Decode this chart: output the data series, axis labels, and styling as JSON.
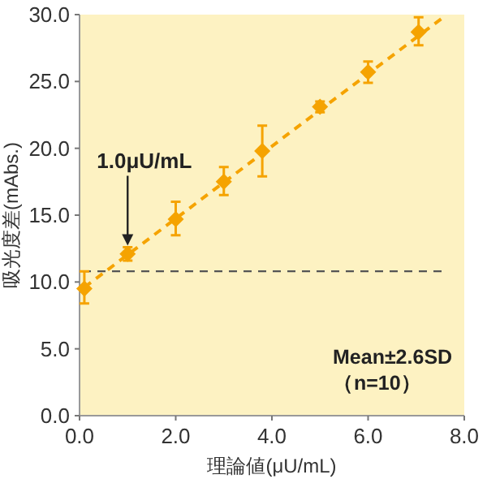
{
  "chart_data": {
    "type": "scatter",
    "xlabel": "理論値(μU/mL)",
    "ylabel": "吸光度差(mAbs.)",
    "xlim": [
      0,
      8
    ],
    "ylim": [
      0,
      30
    ],
    "xticks": [
      {
        "value": 0,
        "label": "0.0"
      },
      {
        "value": 2,
        "label": "2.0"
      },
      {
        "value": 4,
        "label": "4.0"
      },
      {
        "value": 6,
        "label": "6.0"
      },
      {
        "value": 8,
        "label": "8.0"
      }
    ],
    "yticks": [
      {
        "value": 0,
        "label": "0.0"
      },
      {
        "value": 5,
        "label": "5.0"
      },
      {
        "value": 10,
        "label": "10.0"
      },
      {
        "value": 15,
        "label": "15.0"
      },
      {
        "value": 20,
        "label": "20.0"
      },
      {
        "value": 25,
        "label": "25.0"
      },
      {
        "value": 30,
        "label": "30.0"
      }
    ],
    "series": [
      {
        "type": "scatter",
        "color": "#f5a300",
        "marker": "diamond",
        "x": [
          0.1,
          1,
          2,
          3,
          3.8,
          5,
          6,
          7.05
        ],
        "values": [
          9.5,
          12.1,
          14.7,
          17.5,
          19.8,
          23.1,
          25.7,
          28.7
        ],
        "errors": [
          [
            8.4,
            10.8
          ],
          [
            11.6,
            12.6
          ],
          [
            13.5,
            16.0
          ],
          [
            16.5,
            18.6
          ],
          [
            17.9,
            21.7
          ],
          [
            22.7,
            23.5
          ],
          [
            24.9,
            26.5
          ],
          [
            27.7,
            29.8
          ]
        ]
      },
      {
        "type": "line",
        "color": "#f5a300",
        "line_style": "dashed",
        "x": [
          0.1,
          7.6
        ],
        "values": [
          9.6,
          29.9
        ]
      }
    ],
    "ref_lines": [
      {
        "axis": "y",
        "value": 10.8,
        "color": "#555555",
        "line_style": "dashed"
      }
    ],
    "annotations": [
      {
        "text": "1.0μU/mL",
        "x": 1,
        "y": 12.6
      },
      "Mean±2.6SD",
      "（n=10）"
    ]
  }
}
